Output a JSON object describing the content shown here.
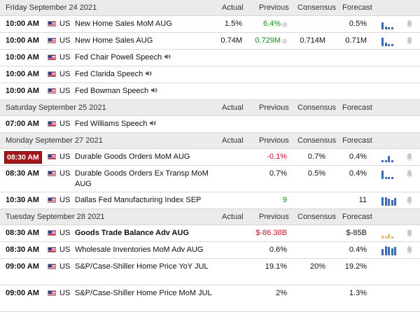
{
  "columns": {
    "actual": "Actual",
    "previous": "Previous",
    "consensus": "Consensus",
    "forecast": "Forecast"
  },
  "days": [
    {
      "date": "Friday September 24 2021",
      "events": [
        {
          "time": "10:00 AM",
          "country": "US",
          "name": "New Home Sales MoM AUG",
          "speech": false,
          "actual": "1.5%",
          "previous": "6.4%",
          "previous_color": "green",
          "previous_revised": true,
          "consensus": "",
          "forecast": "0.5%",
          "chart": [
            10,
            4,
            3,
            3
          ],
          "chart_color": "#3b6cb0",
          "bell": true,
          "live": false,
          "tall": false,
          "bold": false
        },
        {
          "time": "10:00 AM",
          "country": "US",
          "name": "New Home Sales AUG",
          "speech": false,
          "actual": "0.74M",
          "previous": "0.729M",
          "previous_color": "green",
          "previous_revised": true,
          "consensus": "0.714M",
          "forecast": "0.71M",
          "chart": [
            12,
            5,
            3,
            3
          ],
          "chart_color": "#3b6cb0",
          "bell": true,
          "live": false,
          "tall": false,
          "bold": false
        },
        {
          "time": "10:00 AM",
          "country": "US",
          "name": "Fed Chair Powell Speech",
          "speech": true,
          "actual": "",
          "previous": "",
          "consensus": "",
          "forecast": "",
          "chart": [],
          "bell": false,
          "live": false,
          "tall": false,
          "bold": false
        },
        {
          "time": "10:00 AM",
          "country": "US",
          "name": "Fed Clarida Speech",
          "speech": true,
          "actual": "",
          "previous": "",
          "consensus": "",
          "forecast": "",
          "chart": [],
          "bell": false,
          "live": false,
          "tall": false,
          "bold": false
        },
        {
          "time": "10:00 AM",
          "country": "US",
          "name": "Fed Bowman Speech",
          "speech": true,
          "actual": "",
          "previous": "",
          "consensus": "",
          "forecast": "",
          "chart": [],
          "bell": false,
          "live": false,
          "tall": false,
          "bold": false
        }
      ]
    },
    {
      "date": "Saturday September 25 2021",
      "events": [
        {
          "time": "07:00 AM",
          "country": "US",
          "name": "Fed Williams Speech",
          "speech": true,
          "actual": "",
          "previous": "",
          "consensus": "",
          "forecast": "",
          "chart": [],
          "bell": false,
          "live": false,
          "tall": false,
          "bold": false
        }
      ]
    },
    {
      "date": "Monday September 27 2021",
      "events": [
        {
          "time": "08:30 AM",
          "country": "US",
          "name": "Durable Goods Orders MoM AUG",
          "speech": false,
          "actual": "",
          "previous": "-0.1%",
          "previous_color": "red",
          "consensus": "0.7%",
          "forecast": "0.4%",
          "chart": [
            3,
            3,
            9,
            3
          ],
          "chart_color": "#3b6cb0",
          "bell": true,
          "live": true,
          "tall": false,
          "bold": false
        },
        {
          "time": "08:30 AM",
          "country": "US",
          "name": "Durable Goods Orders Ex Transp MoM AUG",
          "speech": false,
          "actual": "",
          "previous": "0.7%",
          "previous_color": "",
          "consensus": "0.5%",
          "forecast": "0.4%",
          "chart": [
            12,
            3,
            3,
            3
          ],
          "chart_color": "#3b6cb0",
          "bell": true,
          "live": false,
          "tall": true,
          "bold": false
        },
        {
          "time": "10:30 AM",
          "country": "US",
          "name": "Dallas Fed Manufacturing Index SEP",
          "speech": false,
          "actual": "",
          "previous": "9",
          "previous_color": "green",
          "consensus": "",
          "forecast": "11",
          "chart": [
            12,
            12,
            10,
            8,
            11
          ],
          "chart_color": "#3b6cb0",
          "bell": true,
          "live": false,
          "tall": false,
          "bold": false
        }
      ]
    },
    {
      "date": "Tuesday September 28 2021",
      "events": [
        {
          "time": "08:30 AM",
          "country": "US",
          "name": "Goods Trade Balance Adv AUG",
          "speech": false,
          "actual": "",
          "previous": "$-86.38B",
          "previous_color": "red",
          "consensus": "",
          "forecast": "$-85B",
          "chart": [
            4,
            3,
            6,
            3
          ],
          "chart_color": "#e8b86a",
          "bell": true,
          "live": false,
          "tall": false,
          "bold": true
        },
        {
          "time": "08:30 AM",
          "country": "US",
          "name": "Wholesale Inventories MoM Adv AUG",
          "speech": false,
          "actual": "",
          "previous": "0.6%",
          "previous_color": "",
          "consensus": "",
          "forecast": "0.4%",
          "chart": [
            9,
            13,
            12,
            10,
            12
          ],
          "chart_color": "#3b6cb0",
          "bell": true,
          "live": false,
          "tall": false,
          "bold": false
        },
        {
          "time": "09:00 AM",
          "country": "US",
          "name": "S&P/Case-Shiller Home Price YoY JUL",
          "speech": false,
          "actual": "",
          "previous": "19.1%",
          "previous_color": "",
          "consensus": "20%",
          "forecast": "19.2%",
          "chart": [],
          "bell": false,
          "live": false,
          "tall": true,
          "bold": false
        },
        {
          "time": "09:00 AM",
          "country": "US",
          "name": "S&P/Case-Shiller Home Price MoM JUL",
          "speech": false,
          "actual": "",
          "previous": "2%",
          "previous_color": "",
          "consensus": "",
          "forecast": "1.3%",
          "chart": [],
          "bell": false,
          "live": false,
          "tall": true,
          "bold": false
        }
      ]
    }
  ]
}
